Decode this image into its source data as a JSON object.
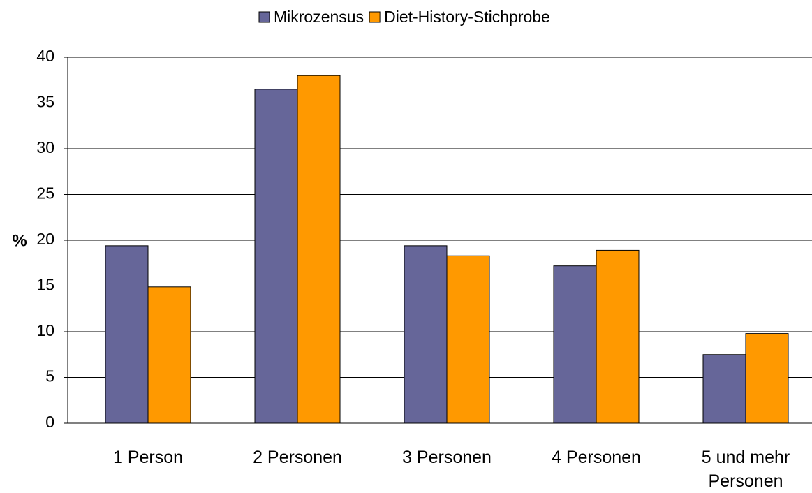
{
  "chart_data": {
    "type": "bar",
    "y_label": "%",
    "categories": [
      "1 Person",
      "2 Personen",
      "3 Personen",
      "4 Personen",
      "5 und mehr Personen"
    ],
    "series": [
      {
        "name": "Mikrozensus",
        "color": "#666699",
        "values": [
          19.4,
          36.5,
          19.4,
          17.2,
          7.5
        ]
      },
      {
        "name": "Diet-History-Stichprobe",
        "color": "#ff9900",
        "values": [
          14.9,
          38,
          18.3,
          18.9,
          9.8
        ]
      }
    ],
    "ylim": [
      0,
      40
    ],
    "yticks": [
      0,
      5,
      10,
      15,
      20,
      25,
      30,
      35,
      40
    ],
    "grid": true,
    "legend": "top"
  }
}
